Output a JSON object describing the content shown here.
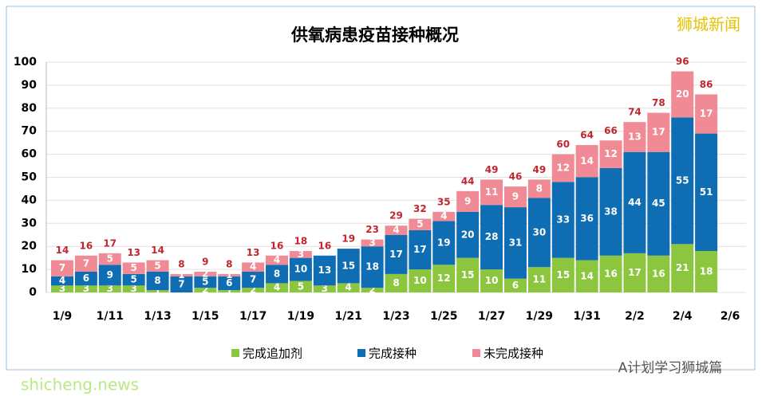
{
  "chart_data": {
    "type": "stacked-bar",
    "title": "供氧病患疫苗接种概况",
    "categories": [
      "1/9",
      null,
      "1/11",
      null,
      "1/13",
      null,
      "1/15",
      null,
      "1/17",
      null,
      "1/19",
      null,
      "1/21",
      null,
      "1/23",
      null,
      "1/25",
      null,
      "1/27",
      null,
      "1/29",
      null,
      "1/31",
      null,
      "2/2",
      null,
      "2/4",
      null,
      "2/6"
    ],
    "series": [
      {
        "name": "完成追加剂",
        "color": "#8cc63f",
        "values": [
          3,
          3,
          3,
          3,
          1,
          0,
          2,
          1,
          2,
          4,
          5,
          3,
          4,
          2,
          8,
          10,
          12,
          15,
          10,
          6,
          11,
          15,
          14,
          16,
          17,
          16,
          21,
          18,
          null
        ]
      },
      {
        "name": "完成接种",
        "color": "#0f6db3",
        "values": [
          4,
          6,
          9,
          5,
          8,
          7,
          5,
          6,
          7,
          8,
          10,
          13,
          15,
          18,
          17,
          17,
          19,
          20,
          28,
          31,
          30,
          33,
          36,
          38,
          44,
          45,
          55,
          51,
          null
        ]
      },
      {
        "name": "未完成接种",
        "color": "#f08a94",
        "values": [
          7,
          7,
          5,
          5,
          5,
          1,
          2,
          1,
          4,
          4,
          3,
          0,
          0,
          3,
          4,
          5,
          4,
          9,
          11,
          9,
          8,
          12,
          14,
          12,
          13,
          17,
          20,
          17,
          null
        ]
      }
    ],
    "totals": [
      14,
      16,
      17,
      13,
      14,
      8,
      9,
      8,
      13,
      16,
      18,
      16,
      19,
      23,
      29,
      32,
      35,
      44,
      49,
      46,
      49,
      60,
      64,
      66,
      74,
      78,
      96,
      86,
      null
    ],
    "ylim": [
      0,
      100
    ],
    "yticks": [
      0,
      10,
      20,
      30,
      40,
      50,
      60,
      70,
      80,
      90,
      100
    ],
    "grid": true
  },
  "watermark": "狮城新闻",
  "footer": {
    "author": "A计划学习狮城篇",
    "site": "shicheng.news"
  }
}
